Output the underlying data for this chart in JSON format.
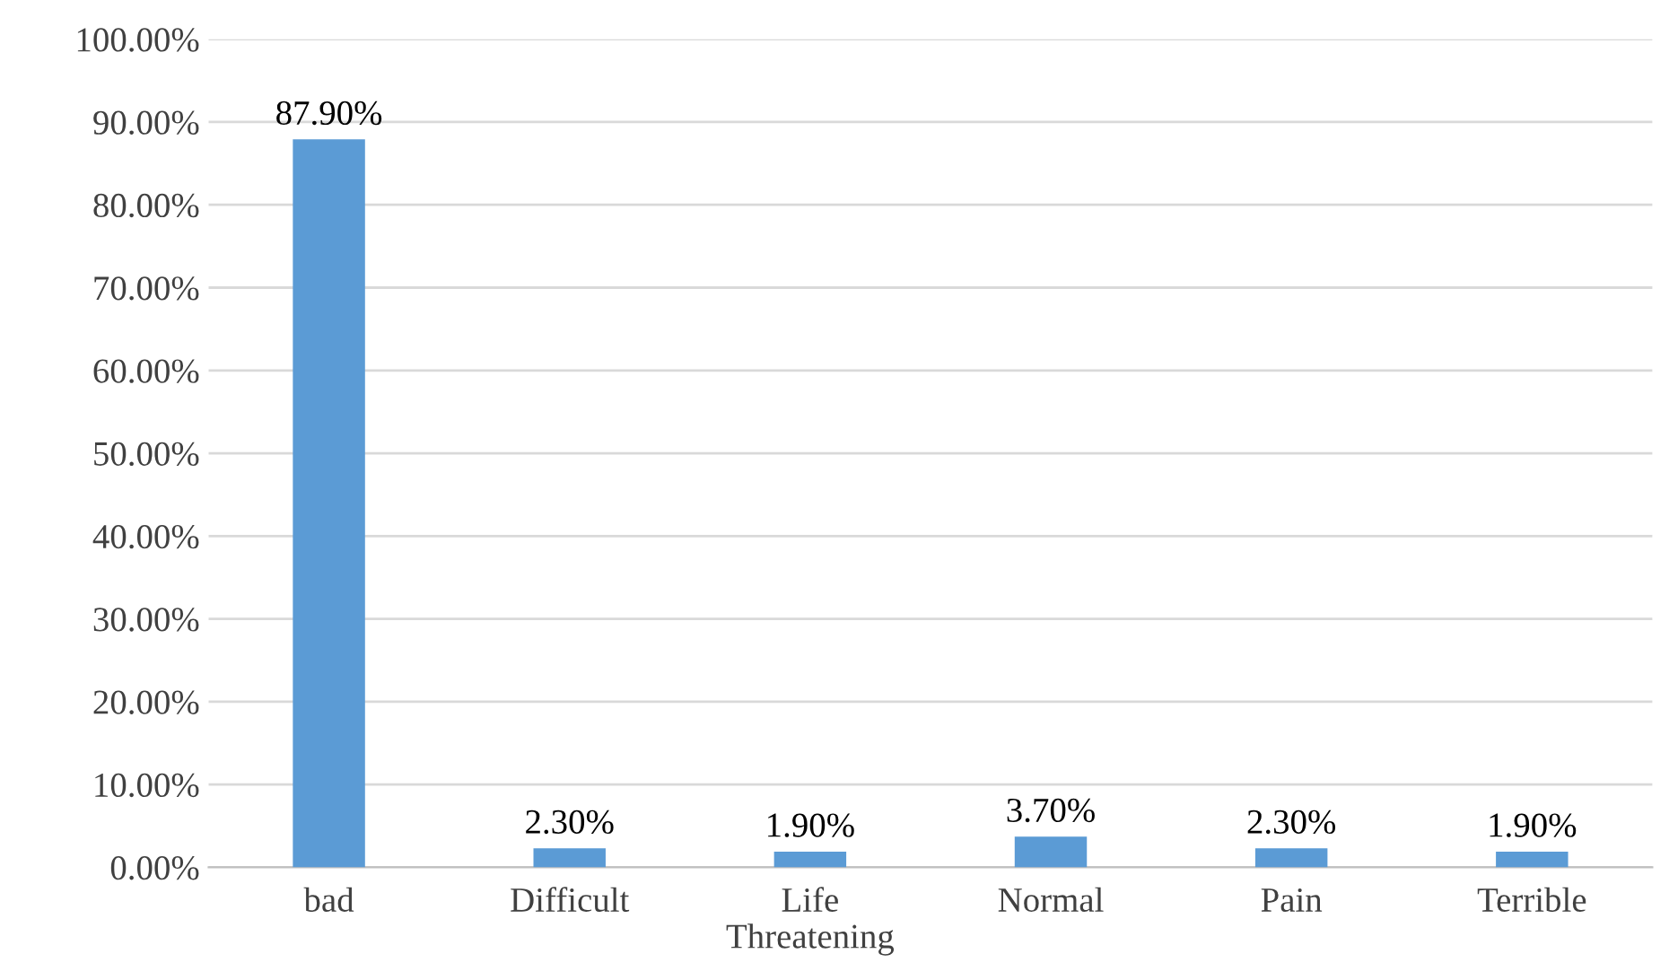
{
  "chart_data": {
    "type": "bar",
    "categories": [
      "bad",
      "Difficult",
      "Life\nThreatening",
      "Normal",
      "Pain",
      "Terrible"
    ],
    "values": [
      87.9,
      2.3,
      1.9,
      3.7,
      2.3,
      1.9
    ],
    "value_labels": [
      "87.90%",
      "2.30%",
      "1.90%",
      "3.70%",
      "2.30%",
      "1.90%"
    ],
    "color": "#5b9bd5",
    "ylim": [
      0,
      100
    ],
    "yticks": [
      {
        "value": 0,
        "label": "0.00%"
      },
      {
        "value": 10,
        "label": "10.00%"
      },
      {
        "value": 20,
        "label": "20.00%"
      },
      {
        "value": 30,
        "label": "30.00%"
      },
      {
        "value": 40,
        "label": "40.00%"
      },
      {
        "value": 50,
        "label": "50.00%"
      },
      {
        "value": 60,
        "label": "60.00%"
      },
      {
        "value": 70,
        "label": "70.00%"
      },
      {
        "value": 80,
        "label": "80.00%"
      },
      {
        "value": 90,
        "label": "90.00%"
      },
      {
        "value": 100,
        "label": "100.00%"
      }
    ],
    "grid": "y",
    "legend": false
  }
}
